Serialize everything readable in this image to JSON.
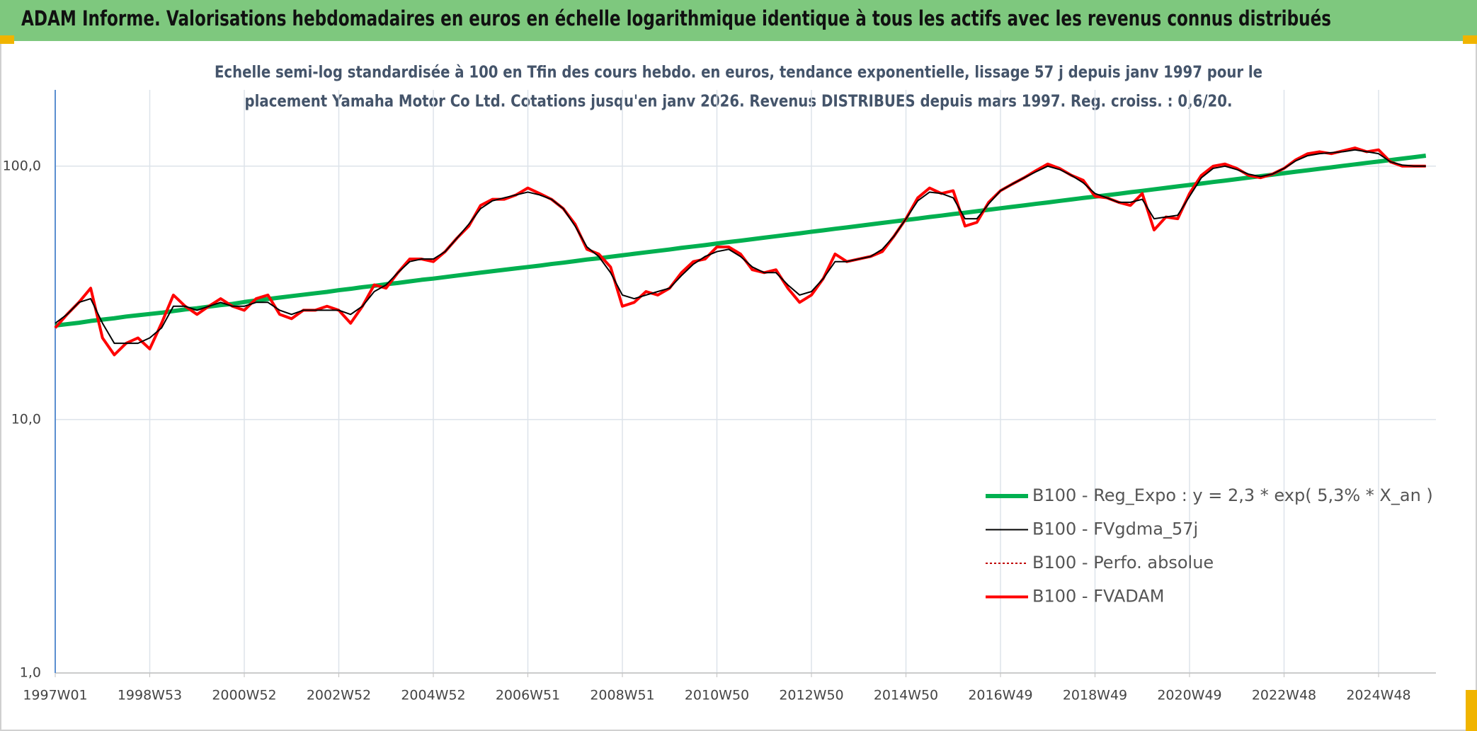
{
  "chart_data": {
    "type": "line",
    "title": "ADAM Informe. Valorisations hebdomadaires en euros en échelle logarithmique identique à tous les actifs avec les revenus connus distribués",
    "subtitle": [
      "Echelle semi-log standardisée à 100 en Tfin des cours hebdo. en euros, tendance exponentielle, lissage 57 j depuis janv 1997 pour le",
      "placement Yamaha Motor Co Ltd. Cotations jusqu'en janv 2026. Revenus DISTRIBUES depuis mars 1997. Reg. croiss. : 0,6/20."
    ],
    "log_y": true,
    "grid": true,
    "legend": "lower right",
    "ylim": [
      1,
      200
    ],
    "yticks": [
      {
        "value": 1,
        "label": "1,0"
      },
      {
        "value": 10,
        "label": "10,0"
      },
      {
        "value": 100,
        "label": "100,0"
      }
    ],
    "categories": [
      "1997W01",
      null,
      null,
      null,
      null,
      null,
      null,
      null,
      "1998W53",
      null,
      null,
      null,
      null,
      null,
      null,
      null,
      "2000W52",
      null,
      null,
      null,
      null,
      null,
      null,
      null,
      "2002W52",
      null,
      null,
      null,
      null,
      null,
      null,
      null,
      "2004W52",
      null,
      null,
      null,
      null,
      null,
      null,
      null,
      "2006W51",
      null,
      null,
      null,
      null,
      null,
      null,
      null,
      "2008W51",
      null,
      null,
      null,
      null,
      null,
      null,
      null,
      "2010W50",
      null,
      null,
      null,
      null,
      null,
      null,
      null,
      "2012W50",
      null,
      null,
      null,
      null,
      null,
      null,
      null,
      "2014W50",
      null,
      null,
      null,
      null,
      null,
      null,
      null,
      "2016W49",
      null,
      null,
      null,
      null,
      null,
      null,
      null,
      "2018W49",
      null,
      null,
      null,
      null,
      null,
      null,
      null,
      "2020W49",
      null,
      null,
      null,
      null,
      null,
      null,
      null,
      "2022W48",
      null,
      null,
      null,
      null,
      null,
      null,
      null,
      "2024W48",
      null,
      null,
      null,
      null
    ],
    "series": [
      {
        "name": "B100 - Reg_Expo : y = 2,3 * exp( 5,3% *  X_an )",
        "color": "#00b050",
        "style": "solid",
        "width": 6,
        "values": [
          23.5,
          23.8,
          24.1,
          24.5,
          24.8,
          25.1,
          25.5,
          25.8,
          26.1,
          26.4,
          26.8,
          27.2,
          27.5,
          27.9,
          28.3,
          28.6,
          29.1,
          29.5,
          29.9,
          30.3,
          30.7,
          31.1,
          31.5,
          31.9,
          32.4,
          32.8,
          33.3,
          33.7,
          34.2,
          34.6,
          35.1,
          35.6,
          36.0,
          36.5,
          37.0,
          37.5,
          38.0,
          38.5,
          39.0,
          39.5,
          40.0,
          40.5,
          41.1,
          41.6,
          42.2,
          42.8,
          43.3,
          43.9,
          44.5,
          45.1,
          45.7,
          46.3,
          46.9,
          47.6,
          48.2,
          48.8,
          49.5,
          50.2,
          50.8,
          51.5,
          52.2,
          52.9,
          53.6,
          54.3,
          55.1,
          55.8,
          56.6,
          57.3,
          58.1,
          58.9,
          59.7,
          60.5,
          61.3,
          62.1,
          63.0,
          63.8,
          64.7,
          65.5,
          66.4,
          67.3,
          68.2,
          69.1,
          70.0,
          71.0,
          71.9,
          72.9,
          73.9,
          74.9,
          75.8,
          76.8,
          77.8,
          78.9,
          79.9,
          81.0,
          82.1,
          83.2,
          84.3,
          85.4,
          86.6,
          87.7,
          88.9,
          90.1,
          91.3,
          92.5,
          93.8,
          95.1,
          96.3,
          97.6,
          98.9,
          100.3,
          101.6,
          103.0,
          104.3,
          105.7,
          107.1,
          108.5,
          110.0
        ]
      },
      {
        "name": "B100 - FVgdma_57j",
        "color": "#000000",
        "style": "solid",
        "width": 2,
        "values": [
          24,
          26,
          29,
          30,
          24,
          20,
          20,
          20,
          21,
          23,
          28,
          28,
          27,
          28,
          29,
          28,
          28,
          29,
          29,
          27,
          26,
          27,
          27,
          27,
          27,
          26,
          28,
          32,
          34,
          38,
          42,
          43,
          43,
          46,
          52,
          59,
          68,
          73,
          75,
          77,
          79,
          77,
          74,
          68,
          58,
          48,
          44,
          38,
          31,
          30,
          31,
          32,
          33,
          37,
          41,
          44,
          46,
          47,
          44,
          40,
          38,
          38,
          34,
          31,
          32,
          36,
          42,
          42,
          43,
          44,
          47,
          53,
          62,
          73,
          79,
          78,
          75,
          62,
          62,
          71,
          80,
          85,
          90,
          95,
          100,
          97,
          92,
          86,
          78,
          75,
          72,
          72,
          74,
          62,
          63,
          64,
          76,
          90,
          98,
          100,
          97,
          93,
          91,
          93,
          98,
          105,
          110,
          112,
          113,
          114,
          116,
          114,
          112,
          104,
          101,
          100,
          100
        ]
      },
      {
        "name": "B100 - Perfo. absolue",
        "color": "#c00000",
        "style": "dotted",
        "width": 2,
        "values": [
          23,
          26,
          29,
          33,
          21,
          18,
          20,
          21,
          19,
          24,
          31,
          28,
          26,
          28,
          30,
          28,
          27,
          30,
          31,
          26,
          25,
          27,
          27,
          28,
          27,
          24,
          28,
          34,
          33,
          38,
          43,
          43,
          42,
          46,
          52,
          58,
          70,
          74,
          74,
          77,
          82,
          78,
          74,
          68,
          59,
          47,
          45,
          40,
          28,
          29,
          32,
          31,
          33,
          38,
          42,
          43,
          48,
          48,
          45,
          39,
          38,
          39,
          33,
          29,
          31,
          36,
          45,
          42,
          43,
          44,
          46,
          53,
          62,
          75,
          82,
          78,
          80,
          58,
          60,
          72,
          80,
          85,
          90,
          96,
          102,
          98,
          92,
          88,
          76,
          75,
          72,
          70,
          78,
          56,
          63,
          62,
          78,
          92,
          100,
          102,
          98,
          92,
          90,
          93,
          98,
          106,
          112,
          114,
          112,
          115,
          118,
          114,
          116,
          104,
          100,
          100,
          100
        ]
      },
      {
        "name": "B100 - FVADAM",
        "color": "#ff0000",
        "style": "solid",
        "width": 4,
        "values": [
          23,
          26,
          29,
          33,
          21,
          18,
          20,
          21,
          19,
          24,
          31,
          28,
          26,
          28,
          30,
          28,
          27,
          30,
          31,
          26,
          25,
          27,
          27,
          28,
          27,
          24,
          28,
          34,
          33,
          38,
          43,
          43,
          42,
          46,
          52,
          58,
          70,
          74,
          74,
          77,
          82,
          78,
          74,
          68,
          59,
          47,
          45,
          40,
          28,
          29,
          32,
          31,
          33,
          38,
          42,
          43,
          48,
          48,
          45,
          39,
          38,
          39,
          33,
          29,
          31,
          36,
          45,
          42,
          43,
          44,
          46,
          53,
          62,
          75,
          82,
          78,
          80,
          58,
          60,
          72,
          80,
          85,
          90,
          96,
          102,
          98,
          92,
          88,
          76,
          75,
          72,
          70,
          78,
          56,
          63,
          62,
          78,
          92,
          100,
          102,
          98,
          92,
          90,
          93,
          98,
          106,
          112,
          114,
          112,
          115,
          118,
          114,
          116,
          104,
          100,
          100,
          100
        ]
      }
    ]
  }
}
